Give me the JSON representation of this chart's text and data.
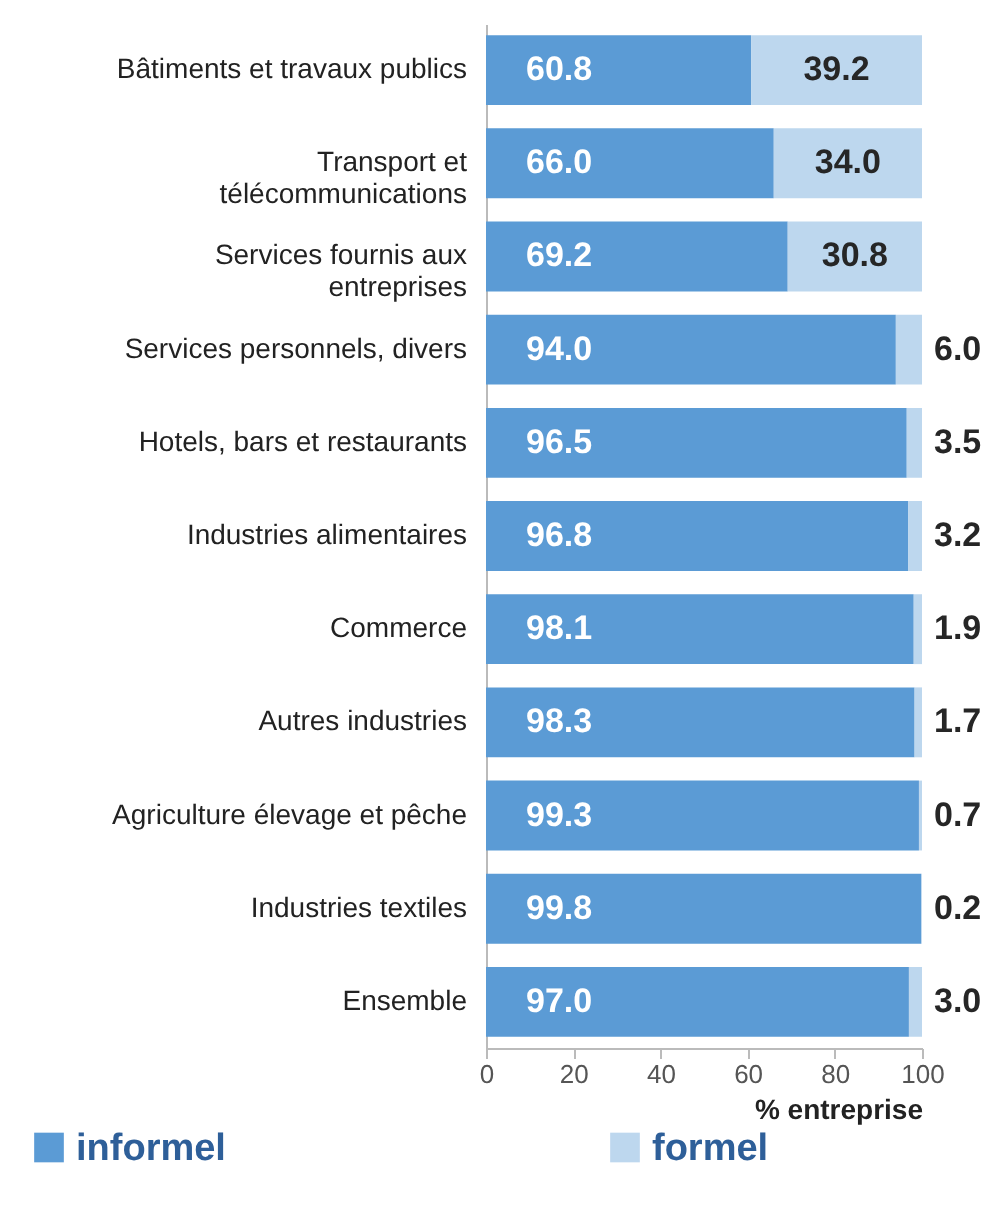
{
  "chart_data": {
    "type": "bar",
    "orientation": "horizontal",
    "stacked": true,
    "xlabel": "% entreprise",
    "categories": [
      "Bâtiments et travaux publics",
      "Transport et télécommunications",
      "Services fournis aux entreprises",
      "Services personnels, divers",
      "Hotels, bars et restaurants",
      "Industries alimentaires",
      "Commerce",
      "Autres industries",
      "Agriculture élevage et pêche",
      "Industries textiles",
      "Ensemble"
    ],
    "series": [
      {
        "name": "informel",
        "color": "#5b9bd5",
        "values": [
          60.8,
          66.0,
          69.2,
          94.0,
          96.5,
          96.8,
          98.1,
          98.3,
          99.3,
          99.8,
          97.0
        ],
        "value_labels": [
          "60.8",
          "66.0",
          "69.2",
          "94.0",
          "96.5",
          "96.8",
          "98.1",
          "98.3",
          "99.3",
          "99.8",
          "97.0"
        ]
      },
      {
        "name": "formel",
        "color": "#bdd7ee",
        "values": [
          39.2,
          34.0,
          30.8,
          6.0,
          3.5,
          3.2,
          1.9,
          1.7,
          0.7,
          0.2,
          3.0
        ],
        "value_labels": [
          "39.2",
          "34.0",
          "30.8",
          "6.0",
          "3.5",
          "3.2",
          "1.9",
          "1.7",
          "0.7",
          "0.2",
          "3.0"
        ]
      }
    ],
    "xlim": [
      0,
      100
    ],
    "xticks": [
      0,
      20,
      40,
      60,
      80,
      100
    ],
    "legend": "bottom",
    "grid": false
  }
}
